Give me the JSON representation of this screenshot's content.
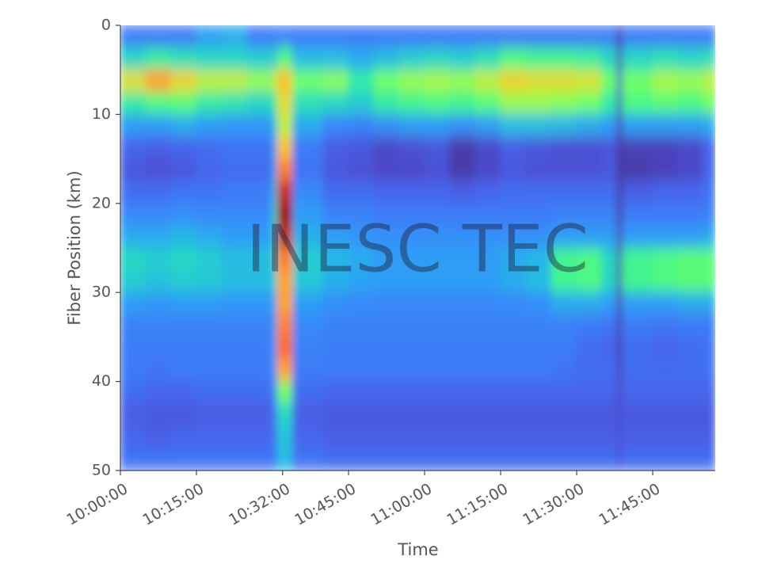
{
  "chart_data": {
    "type": "heatmap",
    "colormap": "turbo",
    "invert_y": true,
    "ylabel": "Fiber Position (km)",
    "xlabel": "Time",
    "watermark": "INESC TEC",
    "xlim": [
      "10:00:00",
      "11:57:20"
    ],
    "ylim": [
      0,
      50
    ],
    "xticks": [
      "10:00:00",
      "10:15:00",
      "10:32:00",
      "10:45:00",
      "11:00:00",
      "11:15:00",
      "11:30:00",
      "11:45:00"
    ],
    "yticks": [
      0,
      10,
      20,
      30,
      40,
      50
    ],
    "zlim": [
      0,
      1
    ],
    "x": [
      "10:00:00",
      "10:05:00",
      "10:10:00",
      "10:15:00",
      "10:20:00",
      "10:25:00",
      "10:30:00",
      "10:31:00",
      "10:34:00",
      "10:40:00",
      "10:45:00",
      "10:50:00",
      "10:55:00",
      "11:00:00",
      "11:05:00",
      "11:10:00",
      "11:15:00",
      "11:20:00",
      "11:25:00",
      "11:30:00",
      "11:35:00",
      "11:38:00",
      "11:39:00",
      "11:45:00",
      "11:50:00",
      "11:55:00"
    ],
    "y": [
      0,
      2.5,
      5,
      7.5,
      10,
      12.5,
      15,
      17.5,
      20,
      22.5,
      25,
      27.5,
      30,
      32.5,
      35,
      37.5,
      40,
      42.5,
      45,
      47.5
    ],
    "z": [
      [
        0.15,
        0.3,
        0.6,
        0.35,
        0.2,
        0.12,
        0.1,
        0.13,
        0.17,
        0.22,
        0.3,
        0.28,
        0.2,
        0.16,
        0.15,
        0.15,
        0.13,
        0.11,
        0.12,
        0.14
      ],
      [
        0.15,
        0.35,
        0.7,
        0.4,
        0.2,
        0.11,
        0.09,
        0.13,
        0.17,
        0.22,
        0.28,
        0.26,
        0.19,
        0.16,
        0.15,
        0.14,
        0.12,
        0.1,
        0.11,
        0.14
      ],
      [
        0.15,
        0.32,
        0.62,
        0.42,
        0.22,
        0.12,
        0.1,
        0.14,
        0.18,
        0.24,
        0.3,
        0.28,
        0.2,
        0.16,
        0.15,
        0.15,
        0.12,
        0.1,
        0.12,
        0.14
      ],
      [
        0.2,
        0.3,
        0.55,
        0.35,
        0.2,
        0.13,
        0.12,
        0.14,
        0.17,
        0.22,
        0.28,
        0.27,
        0.2,
        0.16,
        0.15,
        0.15,
        0.13,
        0.11,
        0.12,
        0.14
      ],
      [
        0.22,
        0.3,
        0.55,
        0.33,
        0.19,
        0.14,
        0.13,
        0.15,
        0.17,
        0.2,
        0.25,
        0.25,
        0.19,
        0.16,
        0.15,
        0.15,
        0.13,
        0.11,
        0.12,
        0.14
      ],
      [
        0.15,
        0.28,
        0.5,
        0.3,
        0.19,
        0.14,
        0.13,
        0.15,
        0.17,
        0.2,
        0.25,
        0.25,
        0.19,
        0.16,
        0.15,
        0.15,
        0.13,
        0.11,
        0.12,
        0.14
      ],
      [
        0.15,
        0.28,
        0.55,
        0.35,
        0.25,
        0.2,
        0.2,
        0.25,
        0.3,
        0.28,
        0.3,
        0.28,
        0.22,
        0.2,
        0.2,
        0.2,
        0.17,
        0.14,
        0.14,
        0.15
      ],
      [
        0.16,
        0.4,
        0.65,
        0.6,
        0.55,
        0.65,
        0.75,
        0.88,
        0.95,
        0.88,
        0.75,
        0.7,
        0.7,
        0.75,
        0.78,
        0.7,
        0.45,
        0.3,
        0.26,
        0.25
      ],
      [
        0.15,
        0.25,
        0.45,
        0.32,
        0.22,
        0.15,
        0.14,
        0.17,
        0.2,
        0.23,
        0.28,
        0.27,
        0.2,
        0.17,
        0.16,
        0.15,
        0.13,
        0.11,
        0.12,
        0.14
      ],
      [
        0.15,
        0.25,
        0.48,
        0.3,
        0.17,
        0.11,
        0.1,
        0.13,
        0.16,
        0.2,
        0.24,
        0.23,
        0.18,
        0.16,
        0.15,
        0.15,
        0.12,
        0.1,
        0.11,
        0.13
      ],
      [
        0.15,
        0.22,
        0.35,
        0.28,
        0.16,
        0.1,
        0.09,
        0.13,
        0.16,
        0.19,
        0.22,
        0.21,
        0.17,
        0.16,
        0.15,
        0.15,
        0.12,
        0.1,
        0.11,
        0.13
      ],
      [
        0.15,
        0.25,
        0.45,
        0.35,
        0.18,
        0.08,
        0.08,
        0.12,
        0.15,
        0.18,
        0.2,
        0.2,
        0.17,
        0.16,
        0.15,
        0.15,
        0.12,
        0.1,
        0.11,
        0.13
      ],
      [
        0.15,
        0.28,
        0.5,
        0.38,
        0.2,
        0.09,
        0.08,
        0.12,
        0.15,
        0.18,
        0.2,
        0.2,
        0.17,
        0.16,
        0.15,
        0.15,
        0.12,
        0.1,
        0.11,
        0.13
      ],
      [
        0.15,
        0.3,
        0.52,
        0.4,
        0.2,
        0.1,
        0.09,
        0.12,
        0.15,
        0.18,
        0.2,
        0.2,
        0.17,
        0.16,
        0.15,
        0.15,
        0.12,
        0.1,
        0.11,
        0.13
      ],
      [
        0.15,
        0.28,
        0.5,
        0.38,
        0.18,
        0.06,
        0.06,
        0.11,
        0.15,
        0.18,
        0.2,
        0.2,
        0.17,
        0.16,
        0.15,
        0.15,
        0.12,
        0.1,
        0.11,
        0.13
      ],
      [
        0.15,
        0.32,
        0.55,
        0.42,
        0.2,
        0.08,
        0.08,
        0.12,
        0.15,
        0.18,
        0.2,
        0.2,
        0.17,
        0.16,
        0.15,
        0.15,
        0.12,
        0.1,
        0.11,
        0.13
      ],
      [
        0.15,
        0.4,
        0.62,
        0.5,
        0.25,
        0.11,
        0.1,
        0.13,
        0.15,
        0.18,
        0.22,
        0.22,
        0.17,
        0.16,
        0.15,
        0.15,
        0.12,
        0.1,
        0.11,
        0.13
      ],
      [
        0.15,
        0.38,
        0.6,
        0.5,
        0.25,
        0.1,
        0.09,
        0.13,
        0.15,
        0.18,
        0.24,
        0.25,
        0.18,
        0.16,
        0.15,
        0.15,
        0.12,
        0.1,
        0.11,
        0.13
      ],
      [
        0.15,
        0.38,
        0.6,
        0.48,
        0.24,
        0.09,
        0.09,
        0.13,
        0.16,
        0.2,
        0.38,
        0.38,
        0.22,
        0.16,
        0.15,
        0.14,
        0.12,
        0.1,
        0.11,
        0.13
      ],
      [
        0.15,
        0.36,
        0.58,
        0.45,
        0.22,
        0.09,
        0.09,
        0.13,
        0.16,
        0.2,
        0.4,
        0.4,
        0.22,
        0.15,
        0.13,
        0.13,
        0.12,
        0.1,
        0.11,
        0.13
      ],
      [
        0.15,
        0.3,
        0.45,
        0.35,
        0.2,
        0.1,
        0.1,
        0.13,
        0.16,
        0.2,
        0.3,
        0.3,
        0.2,
        0.14,
        0.12,
        0.13,
        0.12,
        0.1,
        0.11,
        0.13
      ],
      [
        0.06,
        0.06,
        0.08,
        0.07,
        0.06,
        0.05,
        0.05,
        0.05,
        0.05,
        0.06,
        0.06,
        0.06,
        0.06,
        0.06,
        0.06,
        0.07,
        0.08,
        0.09,
        0.09,
        0.1
      ],
      [
        0.15,
        0.3,
        0.45,
        0.4,
        0.2,
        0.07,
        0.06,
        0.11,
        0.15,
        0.2,
        0.38,
        0.38,
        0.2,
        0.15,
        0.13,
        0.13,
        0.12,
        0.1,
        0.11,
        0.13
      ],
      [
        0.15,
        0.32,
        0.52,
        0.42,
        0.2,
        0.07,
        0.07,
        0.12,
        0.15,
        0.2,
        0.4,
        0.4,
        0.2,
        0.14,
        0.12,
        0.13,
        0.12,
        0.1,
        0.11,
        0.13
      ],
      [
        0.15,
        0.3,
        0.5,
        0.4,
        0.2,
        0.08,
        0.08,
        0.12,
        0.15,
        0.2,
        0.42,
        0.42,
        0.22,
        0.15,
        0.13,
        0.13,
        0.12,
        0.1,
        0.11,
        0.13
      ],
      [
        0.15,
        0.32,
        0.55,
        0.45,
        0.22,
        0.12,
        0.12,
        0.14,
        0.16,
        0.22,
        0.42,
        0.42,
        0.22,
        0.15,
        0.14,
        0.14,
        0.12,
        0.1,
        0.11,
        0.13
      ]
    ]
  }
}
